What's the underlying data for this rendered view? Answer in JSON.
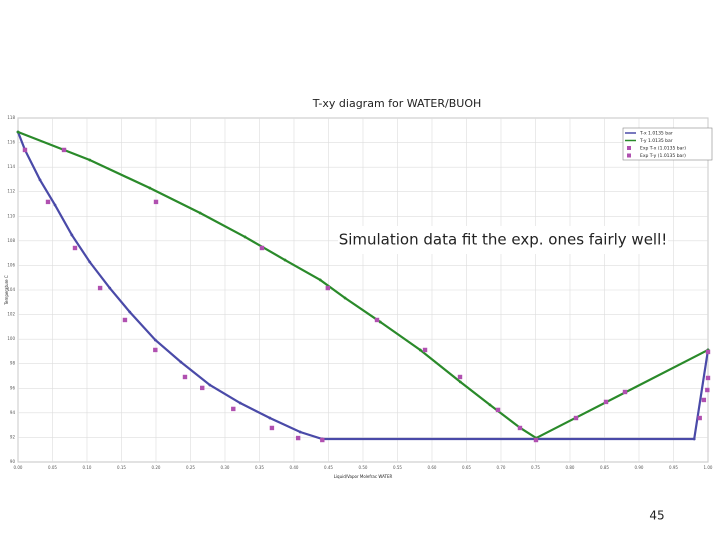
{
  "chart_data": {
    "type": "line",
    "title": "T-xy diagram for WATER/BUOH",
    "x_label": "Liquid/Vapor Molefrac WATER",
    "y_label": "Temperature C",
    "annotation": "Simulation data fit the exp. ones fairly well!",
    "page_number": "45",
    "xlim": [
      0,
      1
    ],
    "ylim": [
      90,
      118
    ],
    "grid": true,
    "legend": "upper right",
    "xticks": [
      {
        "value": 0,
        "label": "0.00"
      },
      {
        "value": 0.05,
        "label": "0.05"
      },
      {
        "value": 0.1,
        "label": "0.10"
      },
      {
        "value": 0.15,
        "label": "0.15"
      },
      {
        "value": 0.2,
        "label": "0.20"
      },
      {
        "value": 0.25,
        "label": "0.25"
      },
      {
        "value": 0.3,
        "label": "0.30"
      },
      {
        "value": 0.35,
        "label": "0.35"
      },
      {
        "value": 0.4,
        "label": "0.40"
      },
      {
        "value": 0.45,
        "label": "0.45"
      },
      {
        "value": 0.5,
        "label": "0.50"
      },
      {
        "value": 0.55,
        "label": "0.55"
      },
      {
        "value": 0.6,
        "label": "0.60"
      },
      {
        "value": 0.65,
        "label": "0.65"
      },
      {
        "value": 0.7,
        "label": "0.70"
      },
      {
        "value": 0.75,
        "label": "0.75"
      },
      {
        "value": 0.8,
        "label": "0.80"
      },
      {
        "value": 0.85,
        "label": "0.85"
      },
      {
        "value": 0.9,
        "label": "0.90"
      },
      {
        "value": 0.95,
        "label": "0.95"
      },
      {
        "value": 1,
        "label": "1.00"
      }
    ],
    "yticks": [
      90,
      92,
      94,
      96,
      98,
      100,
      102,
      104,
      106,
      108,
      110,
      112,
      114,
      116,
      118
    ],
    "series": [
      {
        "name": "T-x 1.0135 bar",
        "color": "#4a4aa8",
        "mode": "line",
        "x": [
          0,
          0.0101,
          0.0319,
          0.0536,
          0.078,
          0.104,
          0.133,
          0.162,
          0.199,
          0.236,
          0.278,
          0.322,
          0.365,
          0.409,
          0.441,
          0.98,
          1.0
        ],
        "values": [
          116.86,
          115.4,
          112.96,
          110.92,
          108.48,
          106.28,
          104.16,
          102.21,
          99.93,
          98.14,
          96.27,
          94.8,
          93.58,
          92.44,
          91.87,
          91.87,
          99.12
        ]
      },
      {
        "name": "T-y 1.0135 bar",
        "color": "#2a8a2a",
        "mode": "line",
        "x": [
          0,
          0.104,
          0.191,
          0.264,
          0.329,
          0.387,
          0.438,
          0.474,
          0.525,
          0.583,
          0.641,
          0.684,
          0.728,
          0.751,
          1.0
        ],
        "values": [
          116.86,
          114.58,
          112.3,
          110.27,
          108.32,
          106.44,
          104.82,
          103.35,
          101.4,
          99.12,
          96.52,
          94.65,
          92.77,
          91.95,
          99.12
        ]
      },
      {
        "name": "Exp T-x (1.0135 bar)",
        "color": "#b050b0",
        "mode": "markers",
        "x": [
          0.0101,
          0.0435,
          0.0826,
          0.119,
          0.155,
          0.199,
          0.242,
          0.267,
          0.312,
          0.368,
          0.406,
          0.441,
          0.988,
          0.994,
          0.999,
          1.0
        ],
        "values": [
          115.4,
          111.17,
          107.42,
          104.16,
          101.56,
          99.12,
          96.92,
          96.03,
          94.32,
          92.77,
          91.95,
          91.79,
          93.58,
          95.05,
          95.86,
          96.84
        ]
      },
      {
        "name": "Exp T-y (1.0135 bar)",
        "color": "#b050b0",
        "mode": "markers",
        "x": [
          0.0667,
          0.2,
          0.3536,
          0.449,
          0.5203,
          0.5899,
          0.6406,
          0.6957,
          0.7275,
          0.7507,
          0.8087,
          0.8522,
          0.8797,
          1.0
        ],
        "values": [
          115.4,
          111.17,
          107.42,
          104.16,
          101.56,
          99.12,
          96.92,
          94.24,
          92.77,
          91.79,
          93.58,
          94.89,
          95.7,
          98.96
        ]
      }
    ]
  }
}
